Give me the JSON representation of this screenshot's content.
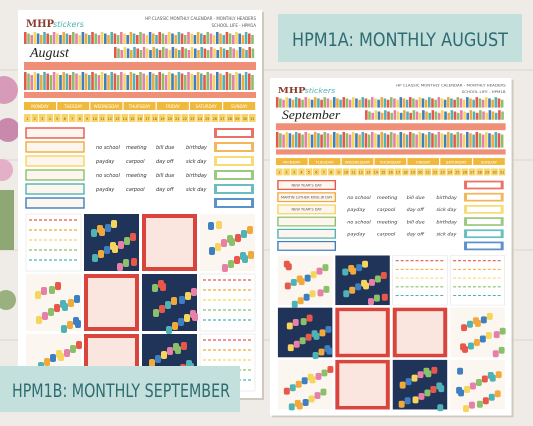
{
  "logo": "MHP",
  "logo_sub": "stickers",
  "sheets": [
    {
      "header": "HP CLASSIC MONTHLY CALENDAR - MONTHLY HEADERS",
      "code": "SCHOOL LIFE - HPM1A",
      "month": "August",
      "holidays": []
    },
    {
      "header": "HP CLASSIC MONTHLY CALENDAR - MONTHLY HEADERS",
      "code": "SCHOOL LIFE - HPM1B",
      "month": "September",
      "holidays": [
        "NEW YEAR'S DAY",
        "MARTIN LUTHER KING JR DAY",
        "NEW YEAR'S DAY"
      ]
    }
  ],
  "weekdays": [
    "MONDAY",
    "TUESDAY",
    "WEDNESDAY",
    "THURSDAY",
    "FRIDAY",
    "SATURDAY",
    "SUNDAY"
  ],
  "dates": [
    1,
    2,
    3,
    4,
    5,
    6,
    7,
    8,
    9,
    10,
    11,
    12,
    13,
    14,
    15,
    16,
    17,
    18,
    19,
    20,
    21,
    22,
    23,
    24,
    25,
    26,
    27,
    28,
    29,
    30,
    31
  ],
  "events": [
    [
      "no school",
      "meeting",
      "bill due",
      "birthday"
    ],
    [
      "payday",
      "carpool",
      "day off",
      "sick day"
    ]
  ],
  "banners": [
    "HPM1A: MONTHLY AUGUST",
    "HPM1B: MONTHLY SEPTEMBER"
  ]
}
